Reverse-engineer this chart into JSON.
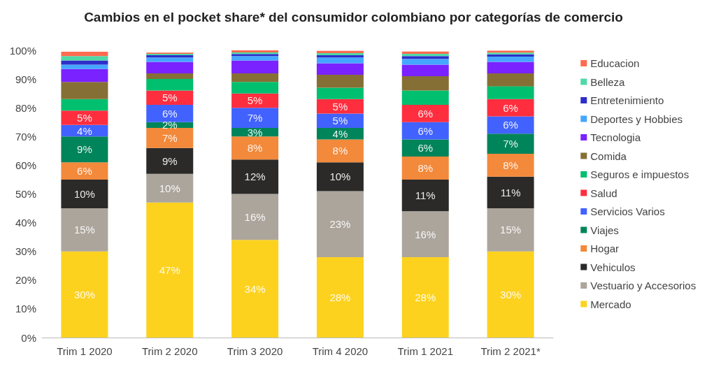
{
  "chart_data": {
    "type": "bar",
    "stacked": true,
    "title": "Cambios en el pocket share* del consumidor colombiano por categorías de comercio",
    "categories": [
      "Trim 1 2020",
      "Trim 2 2020",
      "Trim 3 2020",
      "Trim 4 2020",
      "Trim 1 2021",
      "Trim 2 2021*"
    ],
    "ylim": [
      0,
      100
    ],
    "yticks": [
      {
        "value": 0,
        "label": "0%"
      },
      {
        "value": 10,
        "label": "10%"
      },
      {
        "value": 20,
        "label": "20%"
      },
      {
        "value": 30,
        "label": "30%"
      },
      {
        "value": 40,
        "label": "40%"
      },
      {
        "value": 50,
        "label": "50%"
      },
      {
        "value": 60,
        "label": "60%"
      },
      {
        "value": 70,
        "label": "70%"
      },
      {
        "value": 80,
        "label": "80%"
      },
      {
        "value": 90,
        "label": "90%"
      },
      {
        "value": 100,
        "label": "100%"
      }
    ],
    "grid": false,
    "legend": "right",
    "series": [
      {
        "name": "Mercado",
        "color": "#fcd21f",
        "values": [
          30,
          47,
          34,
          28,
          28,
          30
        ],
        "value_labels": [
          "30%",
          "47%",
          "34%",
          "28%",
          "28%",
          "30%"
        ]
      },
      {
        "name": "Vestuario y Accesorios",
        "color": "#aca59c",
        "values": [
          15,
          10,
          16,
          23,
          16,
          15
        ],
        "value_labels": [
          "15%",
          "10%",
          "16%",
          "23%",
          "16%",
          "15%"
        ]
      },
      {
        "name": "Vehiculos",
        "color": "#2b2a29",
        "values": [
          10,
          9,
          12,
          10,
          11,
          11
        ],
        "value_labels": [
          "10%",
          "9%",
          "12%",
          "10%",
          "11%",
          "11%"
        ]
      },
      {
        "name": "Hogar",
        "color": "#f2893b",
        "values": [
          6,
          7,
          8,
          8,
          8,
          8
        ],
        "value_labels": [
          "6%",
          "7%",
          "8%",
          "8%",
          "8%",
          "8%"
        ]
      },
      {
        "name": "Viajes",
        "color": "#00845a",
        "values": [
          9,
          2,
          3,
          4,
          6,
          7
        ],
        "value_labels": [
          "9%",
          "2%",
          "3%",
          "4%",
          "6%",
          "7%"
        ]
      },
      {
        "name": "Servicios Varios",
        "color": "#4262ff",
        "values": [
          4,
          6,
          7,
          5,
          6,
          6
        ],
        "value_labels": [
          "4%",
          "6%",
          "7%",
          "5%",
          "6%",
          "6%"
        ]
      },
      {
        "name": "Salud",
        "color": "#ff2e3f",
        "values": [
          5,
          5,
          5,
          5,
          6,
          6
        ],
        "value_labels": [
          "5%",
          "5%",
          "5%",
          "5%",
          "6%",
          "6%"
        ]
      },
      {
        "name": "Seguros e impuestos",
        "color": "#00bf6f",
        "values": [
          4,
          4,
          4,
          4,
          5,
          4.5
        ]
      },
      {
        "name": "Comida",
        "color": "#866f35",
        "values": [
          6,
          2,
          3,
          4.5,
          5,
          4.5
        ]
      },
      {
        "name": "Tecnologia",
        "color": "#7a22ff",
        "values": [
          4.5,
          4,
          4.5,
          4,
          4,
          4
        ]
      },
      {
        "name": "Deportes y Hobbies",
        "color": "#45a7ff",
        "values": [
          1.5,
          1.5,
          1.5,
          2,
          2,
          1.8
        ]
      },
      {
        "name": "Entretenimiento",
        "color": "#2e2ec9",
        "values": [
          1.5,
          0.8,
          0.7,
          0.8,
          1,
          0.8
        ]
      },
      {
        "name": "Belleza",
        "color": "#4fd9a7",
        "values": [
          1.5,
          0.5,
          0.6,
          0.7,
          0.8,
          0.6
        ]
      },
      {
        "name": "Educacion",
        "color": "#ff6b50",
        "values": [
          1.5,
          0.4,
          0.7,
          0.8,
          0.8,
          0.7
        ]
      }
    ]
  }
}
